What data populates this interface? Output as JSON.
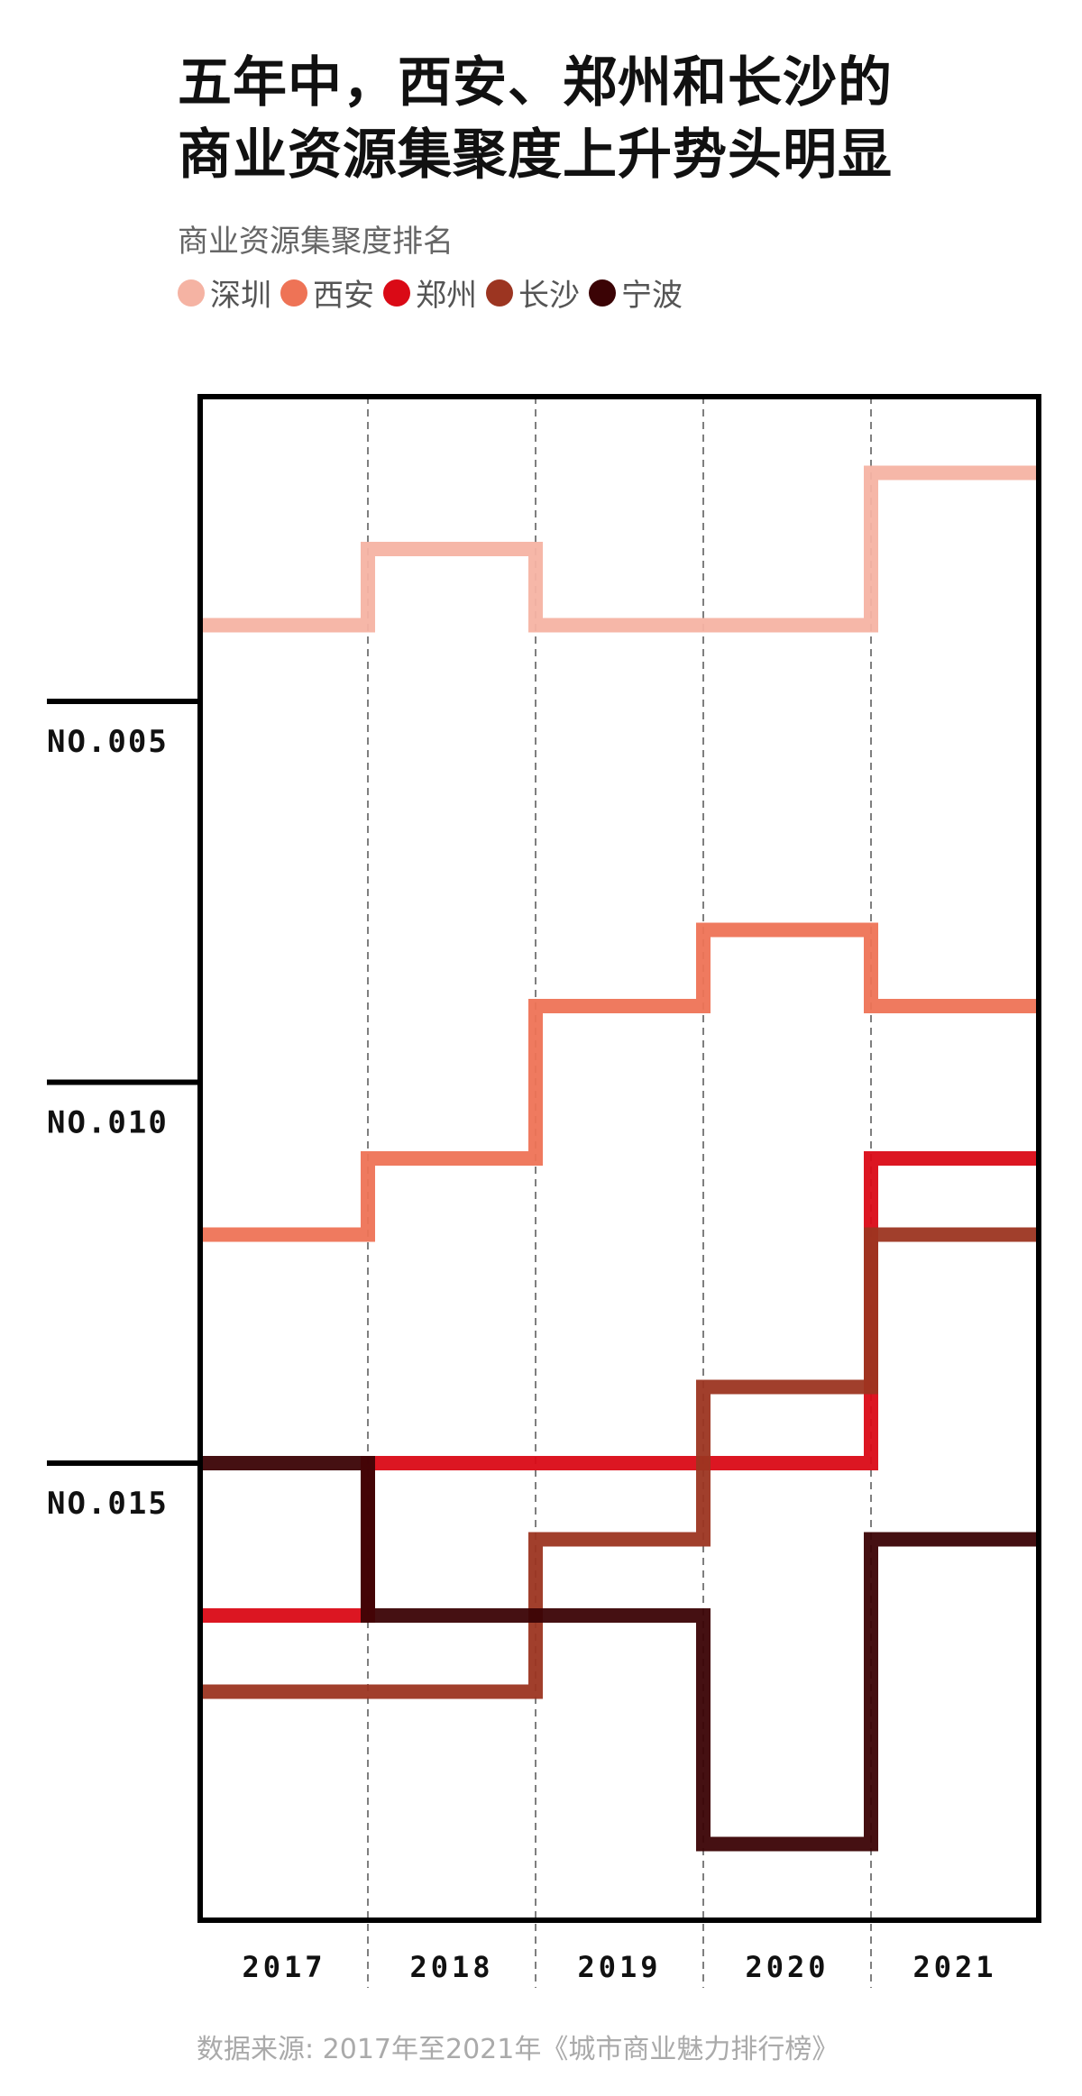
{
  "title": "五年中，西安、郑州和长沙的\n商业资源集聚度上升势头明显",
  "subtitle": "商业资源集聚度排名",
  "source": "数据来源: 2017年至2021年《城市商业魅力排行榜》",
  "chart_data": {
    "type": "line",
    "step": true,
    "x": [
      "2017",
      "2018",
      "2019",
      "2020",
      "2021"
    ],
    "y_axis": {
      "reversed": true,
      "ylim": [
        1,
        21
      ],
      "ticks": [
        5,
        10,
        15
      ],
      "tick_labels": [
        "NO.005",
        "NO.010",
        "NO.015"
      ]
    },
    "grid": "vertical dashed lines between years",
    "legend_position": "top",
    "series": [
      {
        "name": "深圳",
        "color": "#f5b3a3",
        "values": [
          4,
          3,
          4,
          4,
          2
        ]
      },
      {
        "name": "西安",
        "color": "#ee7356",
        "values": [
          12,
          11,
          9,
          8,
          9
        ]
      },
      {
        "name": "郑州",
        "color": "#da0a16",
        "values": [
          17,
          15,
          15,
          15,
          11
        ]
      },
      {
        "name": "长沙",
        "color": "#9c3521",
        "values": [
          18,
          18,
          16,
          14,
          12
        ]
      },
      {
        "name": "宁波",
        "color": "#3b0305",
        "values": [
          15,
          17,
          17,
          20,
          16
        ]
      }
    ]
  }
}
